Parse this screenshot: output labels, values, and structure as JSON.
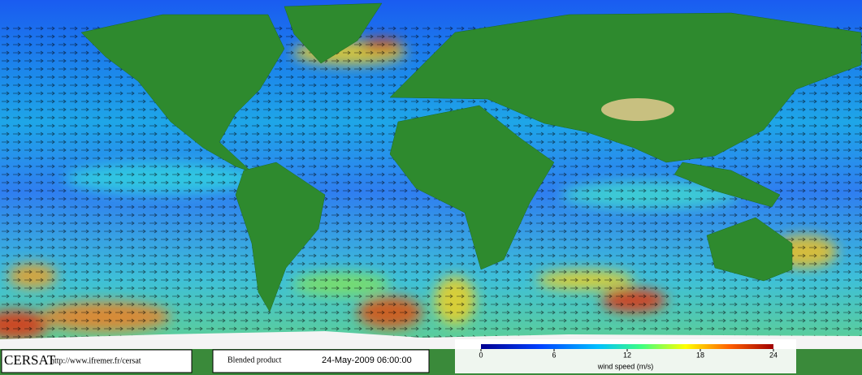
{
  "footer": {
    "logo": "CERSAT",
    "url": "http://www.ifremer.fr/cersat",
    "product": "Blended product",
    "date": "24-May-2009 06:00:00"
  },
  "colorbar": {
    "label": "wind speed (m/s)",
    "lim": [
      0,
      24
    ],
    "ticks": [
      0,
      6,
      12,
      18,
      24
    ]
  }
}
